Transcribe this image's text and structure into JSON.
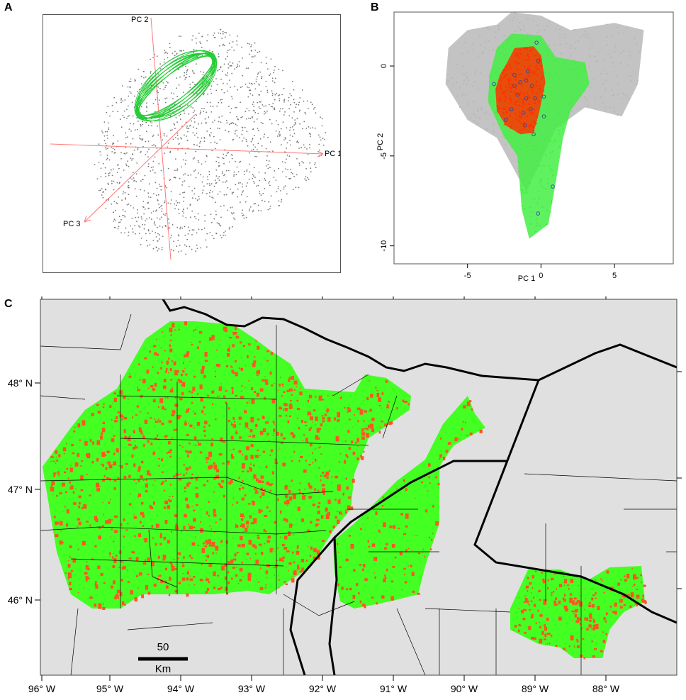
{
  "panels": {
    "a": {
      "letter": "A"
    },
    "b": {
      "letter": "B"
    },
    "c": {
      "letter": "C"
    }
  },
  "colors": {
    "background_points": "#777777",
    "ellipse": "#22cc33",
    "axis_lines": "#ff7777",
    "grey_cloud": "#b8b8b8",
    "green": "#44ee44",
    "red": "#ff3300",
    "blue_points": "#3344aa",
    "map_land": "#e0e0e0",
    "map_green": "#44ff22",
    "map_red": "#ff5522",
    "borders": "#000000"
  },
  "chart_data": [
    {
      "type": "scatter",
      "panel": "A",
      "title": "",
      "axes_3d": [
        "PC 1",
        "PC 2",
        "PC 3"
      ],
      "series": [
        {
          "values": "grey point cloud (environment space)"
        },
        {
          "values": "green ellipsoid"
        }
      ]
    },
    {
      "type": "scatter",
      "panel": "B",
      "title": "",
      "xlabel": "PC 1",
      "ylabel": "PC 2",
      "xticks": [
        "-5",
        "0",
        "5"
      ],
      "yticks": [
        "0",
        "-5",
        "-10"
      ],
      "xlim": [
        -10,
        9
      ],
      "ylim": [
        -11,
        3
      ],
      "occurrence_points": [
        [
          -0.3,
          1.3
        ],
        [
          -1.8,
          -0.5
        ],
        [
          -3.2,
          -1.0
        ],
        [
          -1.4,
          -0.9
        ],
        [
          -1.0,
          -0.8
        ],
        [
          -0.6,
          -1.1
        ],
        [
          -1.6,
          -1.6
        ],
        [
          -1.0,
          -1.8
        ],
        [
          -0.4,
          -1.8
        ],
        [
          -2.0,
          -2.4
        ],
        [
          -1.2,
          -2.6
        ],
        [
          -0.7,
          -2.4
        ],
        [
          -2.4,
          -3.0
        ],
        [
          -1.1,
          -3.3
        ],
        [
          0.2,
          -2.8
        ],
        [
          -0.5,
          -3.8
        ],
        [
          0.2,
          -1.7
        ],
        [
          -1.8,
          -1.1
        ],
        [
          -0.2,
          0.3
        ],
        [
          -0.9,
          -0.3
        ],
        [
          0.8,
          -6.7
        ],
        [
          -0.2,
          -8.2
        ]
      ]
    },
    {
      "type": "map",
      "panel": "C",
      "lon_labels": [
        "96° W",
        "95° W",
        "94° W",
        "93° W",
        "92° W",
        "91° W",
        "90° W",
        "89° W",
        "88° W"
      ],
      "lat_labels": [
        "48° N",
        "47° N",
        "46° N"
      ],
      "scale_bar": {
        "value": "50",
        "unit": "Km"
      }
    }
  ]
}
